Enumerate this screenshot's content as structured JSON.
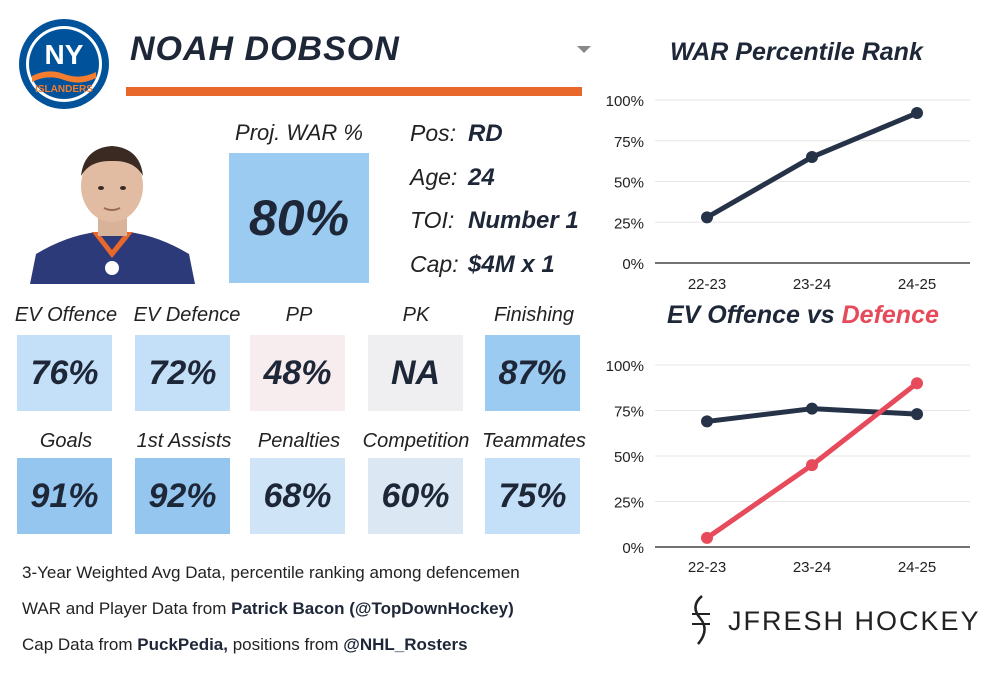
{
  "player": {
    "name": "NOAH DOBSON",
    "team": "NY ISLANDERS",
    "team_logo_text_top": "NY",
    "team_logo_text_bottom": "ISLANDERS"
  },
  "war": {
    "label": "Proj. WAR %",
    "value": "80%"
  },
  "info": [
    {
      "label": "Pos:",
      "value": "RD"
    },
    {
      "label": "Age:",
      "value": "24"
    },
    {
      "label": "TOI:",
      "value": "Number 1"
    },
    {
      "label": "Cap:",
      "value": "$4M x 1"
    }
  ],
  "stats_row1": [
    {
      "label": "EV Offence",
      "value": "76%",
      "color": "#c4e0f8"
    },
    {
      "label": "EV Defence",
      "value": "72%",
      "color": "#c4e0f8"
    },
    {
      "label": "PP",
      "value": "48%",
      "color": "#f7ecee"
    },
    {
      "label": "PK",
      "value": "NA",
      "color": "#efeff1"
    },
    {
      "label": "Finishing",
      "value": "87%",
      "color": "#9ccbf2"
    }
  ],
  "stats_row2": [
    {
      "label": "Goals",
      "value": "91%",
      "color": "#94c6f0"
    },
    {
      "label": "1st Assists",
      "value": "92%",
      "color": "#94c6f0"
    },
    {
      "label": "Penalties",
      "value": "68%",
      "color": "#cfe4f6"
    },
    {
      "label": "Competition",
      "value": "60%",
      "color": "#dbe8f4"
    },
    {
      "label": "Teammates",
      "value": "75%",
      "color": "#c4e0f8"
    }
  ],
  "notes": {
    "line1": "3-Year Weighted Avg Data, percentile ranking among defencemen",
    "line2_prefix": "WAR and Player Data from ",
    "line2_bold": "Patrick Bacon (@TopDownHockey)",
    "line3_prefix": "Cap Data from ",
    "line3_bold1": "PuckPedia,",
    "line3_mid": " positions from ",
    "line3_bold2": "@NHL_Rosters"
  },
  "brand": {
    "name": "JFRESH HOCKEY"
  },
  "colors": {
    "navy": "#253247",
    "orange": "#e8682b",
    "red": "#e64a5b"
  },
  "chart_data": [
    {
      "type": "line",
      "title": "WAR Percentile Rank",
      "categories": [
        "22-23",
        "23-24",
        "24-25"
      ],
      "yticks": [
        "0%",
        "25%",
        "50%",
        "75%",
        "100%"
      ],
      "ylim": [
        0,
        100
      ],
      "series": [
        {
          "name": "WAR",
          "values": [
            28,
            65,
            92
          ],
          "color": "#253247"
        }
      ]
    },
    {
      "type": "line",
      "title_part1": "EV Offence vs ",
      "title_part2": "Defence",
      "categories": [
        "22-23",
        "23-24",
        "24-25"
      ],
      "yticks": [
        "0%",
        "25%",
        "50%",
        "75%",
        "100%"
      ],
      "ylim": [
        0,
        100
      ],
      "series": [
        {
          "name": "EV Offence",
          "values": [
            69,
            76,
            73
          ],
          "color": "#253247"
        },
        {
          "name": "EV Defence",
          "values": [
            5,
            45,
            90
          ],
          "color": "#e64a5b"
        }
      ]
    }
  ]
}
